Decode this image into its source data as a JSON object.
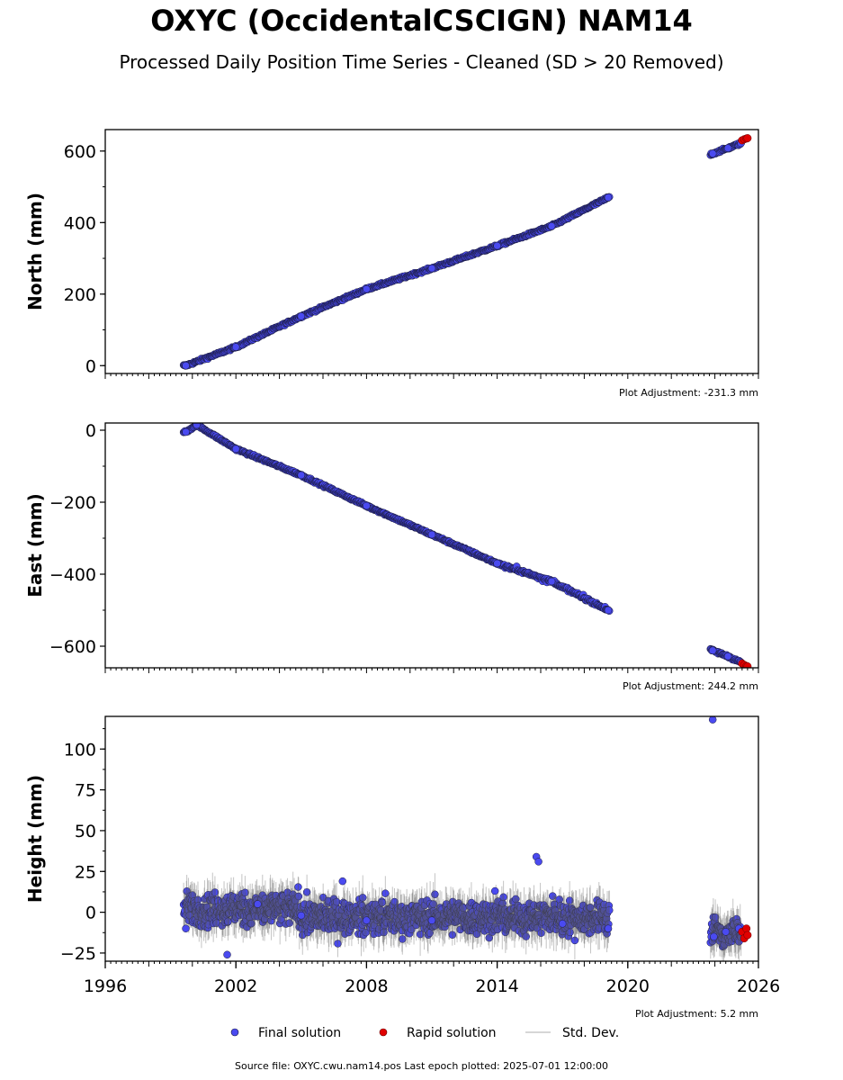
{
  "title": "OXYC (OccidentalCSCIGN) NAM14",
  "subtitle": "Processed Daily Position Time Series - Cleaned (SD > 20 Removed)",
  "legend": {
    "final_label": "Final solution",
    "rapid_label": "Rapid solution",
    "sd_label": "Std. Dev."
  },
  "footer": "Source file: OXYC.cwu.nam14.pos  Last epoch plotted: 2025-07-01 12:00:00",
  "colors": {
    "final": "#4a4af0",
    "rapid": "#e00000",
    "sd": "#b0b0b0",
    "edge": "#1a1a3a"
  },
  "chart_data": [
    {
      "type": "scatter",
      "ylabel": "North (mm)",
      "xlim": [
        1996,
        2026
      ],
      "ylim": [
        -22,
        660
      ],
      "yticks": [
        0,
        200,
        400,
        600
      ],
      "ytick_labels": [
        "0",
        "200",
        "400",
        "600"
      ],
      "adjustment": "Plot Adjustment: -231.3 mm",
      "series": [
        {
          "name": "Final solution",
          "x": [
            1999.7,
            2002,
            2005,
            2008,
            2011,
            2014,
            2016.5,
            2019.1,
            2023.9,
            2024.6,
            2025.2
          ],
          "y": [
            0,
            52,
            138,
            214,
            272,
            335,
            390,
            470,
            593,
            608,
            622
          ]
        },
        {
          "name": "Rapid solution",
          "x": [
            2025.25,
            2025.35,
            2025.45,
            2025.5
          ],
          "y": [
            630,
            633,
            635,
            636
          ]
        }
      ]
    },
    {
      "type": "scatter",
      "ylabel": "East (mm)",
      "xlim": [
        1996,
        2026
      ],
      "ylim": [
        -660,
        20
      ],
      "yticks": [
        0,
        -200,
        -400,
        -600
      ],
      "ytick_labels": [
        "0",
        "−200",
        "−400",
        "−600"
      ],
      "adjustment": "Plot Adjustment: 244.2 mm",
      "series": [
        {
          "name": "Final solution",
          "x": [
            1999.7,
            2000.2,
            2002,
            2005,
            2008,
            2011,
            2014,
            2016.5,
            2019.1,
            2023.9,
            2024.6,
            2025.2
          ],
          "y": [
            -5,
            15,
            -52,
            -125,
            -210,
            -290,
            -370,
            -420,
            -500,
            -612,
            -628,
            -645
          ]
        },
        {
          "name": "Rapid solution",
          "x": [
            2025.25,
            2025.35,
            2025.45,
            2025.5
          ],
          "y": [
            -648,
            -652,
            -655,
            -656
          ]
        }
      ]
    },
    {
      "type": "scatter",
      "ylabel": "Height (mm)",
      "xlim": [
        1996,
        2026
      ],
      "ylim": [
        -30,
        120
      ],
      "yticks": [
        -25,
        0,
        25,
        50,
        75,
        100
      ],
      "ytick_labels": [
        "−25",
        "0",
        "25",
        "50",
        "75",
        "100"
      ],
      "xticks": [
        1996,
        2002,
        2008,
        2014,
        2020,
        2026
      ],
      "xtick_labels": [
        "1996",
        "2002",
        "2008",
        "2014",
        "2020",
        "2026"
      ],
      "adjustment": "Plot Adjustment: 5.2 mm",
      "series": [
        {
          "name": "Final solution",
          "x": [
            1999.7,
            2001.6,
            2003,
            2005,
            2006.9,
            2008,
            2011,
            2013.9,
            2015.8,
            2015.9,
            2017,
            2019.1,
            2023.9,
            2023.95,
            2024.5,
            2025.1
          ],
          "y": [
            -10,
            -26,
            5,
            -2,
            19,
            -5,
            -5,
            13,
            34,
            31,
            -7,
            -10,
            118,
            -15,
            -12,
            -10
          ]
        },
        {
          "name": "Rapid solution",
          "x": [
            2025.25,
            2025.35,
            2025.45,
            2025.5
          ],
          "y": [
            -12,
            -16,
            -10,
            -14
          ]
        }
      ]
    }
  ]
}
